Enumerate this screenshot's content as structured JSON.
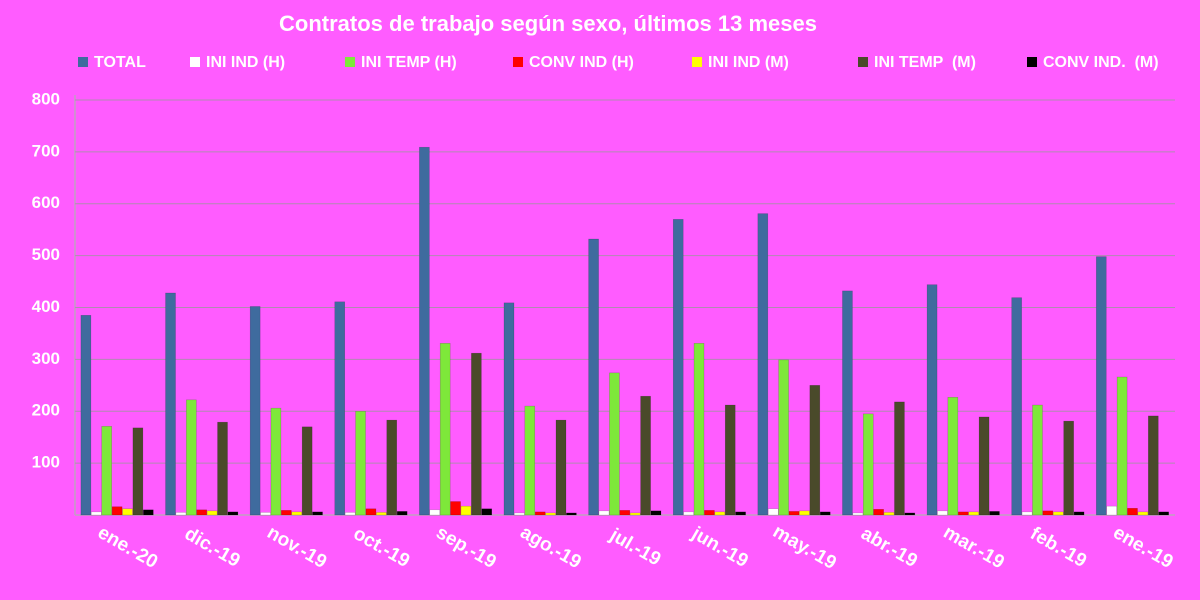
{
  "chart_data": {
    "type": "bar",
    "title": "Contratos de trabajo según sexo, últimos 13 meses",
    "categories": [
      "ene.-20",
      "dic.-19",
      "nov.-19",
      "oct.-19",
      "sep.-19",
      "ago.-19",
      "jul.-19",
      "jun.-19",
      "may.-19",
      "abr.-19",
      "mar.-19",
      "feb.-19",
      "ene.-19"
    ],
    "series": [
      {
        "name": "TOTAL",
        "color": "#3f6b9e",
        "values": [
          385,
          428,
          402,
          411,
          709,
          409,
          532,
          570,
          581,
          432,
          444,
          419,
          498
        ]
      },
      {
        "name": "INI IND (H)",
        "color": "#ffffff",
        "values": [
          6,
          5,
          5,
          5,
          10,
          4,
          8,
          6,
          12,
          4,
          8,
          6,
          17
        ]
      },
      {
        "name": "INI TEMP (H)",
        "color": "#7ee83a",
        "values": [
          171,
          222,
          206,
          200,
          331,
          210,
          274,
          331,
          299,
          195,
          227,
          212,
          266
        ]
      },
      {
        "name": "CONV IND (H)",
        "color": "#ff0000",
        "values": [
          16,
          10,
          9,
          12,
          26,
          6,
          9,
          9,
          7,
          11,
          6,
          8,
          13
        ]
      },
      {
        "name": "INI IND (M)",
        "color": "#ffff00",
        "values": [
          12,
          8,
          6,
          5,
          17,
          4,
          4,
          6,
          8,
          5,
          6,
          6,
          6
        ]
      },
      {
        "name": "INI TEMP  (M)",
        "color": "#4a4a2a",
        "values": [
          168,
          179,
          170,
          183,
          312,
          183,
          229,
          212,
          250,
          218,
          189,
          181,
          191
        ]
      },
      {
        "name": "CONV IND.  (M)",
        "color": "#000000",
        "values": [
          10,
          6,
          6,
          7,
          12,
          4,
          8,
          6,
          6,
          4,
          7,
          6,
          6
        ]
      }
    ],
    "ylim": [
      0,
      800
    ],
    "yticks": [
      100,
      200,
      300,
      400,
      500,
      600,
      700,
      800
    ],
    "grid": true
  }
}
